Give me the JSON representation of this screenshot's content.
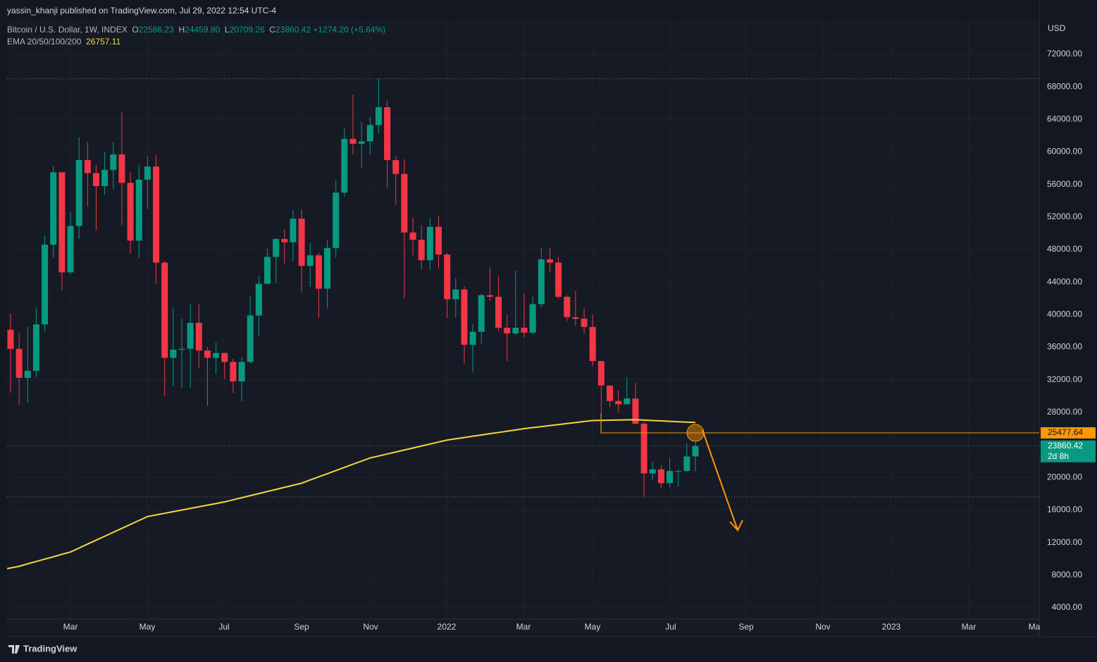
{
  "chart_data": {
    "type": "candlestick",
    "published": "yassin_khanji published on TradingView.com, Jul 29, 2022 12:54 UTC-4",
    "title": "Bitcoin / U.S. Dollar, 1W, INDEX",
    "legend_keys": [
      "O",
      "H",
      "L",
      "C"
    ],
    "ohlc_labels": {
      "open": "22586.23",
      "high": "24459.80",
      "low": "20709.26",
      "close": "23860.42"
    },
    "change_label": "+1274.20 (+5.64%)",
    "currency": "USD",
    "countdown": "2d 8h",
    "brand": "TradingView",
    "up_color": "#089981",
    "down_color": "#f23645",
    "open": [
      38150,
      35800,
      32250,
      33100,
      38800,
      48600,
      57500,
      45200,
      50900,
      59000,
      57400,
      55800,
      57800,
      59700,
      56200,
      49100,
      56600,
      58200,
      46400,
      34700,
      35700,
      35800,
      39000,
      35600,
      34700,
      35300,
      34200,
      31800,
      34200,
      39900,
      43800,
      47100,
      49300,
      48900,
      51800,
      46000,
      47300,
      43200,
      48200,
      55000,
      61600,
      61000,
      61300,
      63300,
      65500,
      59000,
      57300,
      50100,
      49200,
      46700,
      50800,
      47400,
      41900,
      43100,
      36300,
      37900,
      42400,
      42200,
      38400,
      37700,
      38400,
      37800,
      41300,
      46800,
      46400,
      42200,
      39700,
      39500,
      38500,
      34300,
      31300,
      29400,
      29000,
      29700,
      26600,
      20500,
      21000,
      19300,
      20800,
      20800,
      22586.23
    ],
    "high": [
      40100,
      37800,
      38500,
      40900,
      49700,
      58300,
      57500,
      52600,
      61800,
      61200,
      58400,
      60000,
      61200,
      64900,
      57500,
      58400,
      59500,
      59600,
      46600,
      40800,
      39500,
      41300,
      41300,
      36000,
      36600,
      35300,
      34600,
      34800,
      42300,
      44800,
      48100,
      49400,
      50500,
      52900,
      52900,
      48800,
      47600,
      49200,
      56600,
      62900,
      67000,
      63700,
      64300,
      69000,
      66300,
      59500,
      59100,
      51900,
      51000,
      51900,
      52100,
      47600,
      44500,
      43500,
      38900,
      42600,
      45800,
      44700,
      40000,
      45400,
      42600,
      42300,
      48200,
      48200,
      47100,
      42400,
      42900,
      40800,
      40000,
      34300,
      31300,
      30700,
      32300,
      31600,
      26800,
      21900,
      21500,
      22400,
      21000,
      24200,
      24459.8
    ],
    "low": [
      30400,
      28900,
      29200,
      32300,
      37900,
      47000,
      43000,
      45000,
      49300,
      53300,
      50400,
      54700,
      55400,
      51000,
      47500,
      47000,
      53000,
      43800,
      30000,
      31200,
      31000,
      31000,
      33400,
      28800,
      32700,
      32100,
      30400,
      29300,
      34000,
      37300,
      43700,
      43900,
      46300,
      46600,
      42800,
      43400,
      39600,
      40800,
      47000,
      54500,
      59700,
      58000,
      59700,
      62300,
      55600,
      53500,
      42000,
      47300,
      45600,
      45500,
      45700,
      39600,
      39700,
      34000,
      32900,
      36400,
      41700,
      38000,
      34300,
      37500,
      37200,
      37600,
      40900,
      45200,
      42000,
      39200,
      38600,
      37700,
      33700,
      25400,
      28700,
      28000,
      29300,
      26600,
      17600,
      19700,
      18700,
      18800,
      18900,
      20700,
      20709.26
    ],
    "close": [
      35800,
      32250,
      33100,
      38800,
      48600,
      57500,
      45200,
      50900,
      59000,
      57400,
      55800,
      57800,
      59700,
      56200,
      49100,
      56600,
      58200,
      46400,
      34700,
      35700,
      35800,
      39000,
      35600,
      34700,
      35300,
      34200,
      31800,
      34200,
      39900,
      43800,
      47100,
      49300,
      48900,
      51800,
      46000,
      47300,
      43200,
      48200,
      55000,
      61600,
      61000,
      61300,
      63300,
      65500,
      59000,
      57300,
      50100,
      49200,
      46700,
      50800,
      47400,
      41900,
      43100,
      36300,
      37900,
      42400,
      42200,
      38400,
      37700,
      38400,
      37800,
      41300,
      46800,
      46400,
      42200,
      39700,
      39500,
      38500,
      34300,
      31300,
      29400,
      29000,
      29700,
      26600,
      20500,
      21000,
      19300,
      20800,
      20800,
      22586.23,
      23860.42
    ],
    "ema": {
      "name": "EMA 20/50/100/200",
      "color": "#f5d63d",
      "values": [
        8800,
        9090,
        9390,
        9680,
        9970,
        10260,
        10560,
        10850,
        11330,
        11820,
        12300,
        12780,
        13270,
        13750,
        14230,
        14720,
        15200,
        15400,
        15600,
        15800,
        16000,
        16200,
        16400,
        16600,
        16800,
        17000,
        17260,
        17510,
        17770,
        18020,
        18280,
        18530,
        18790,
        19040,
        19300,
        19690,
        20080,
        20460,
        20850,
        21240,
        21630,
        22010,
        22400,
        22640,
        22890,
        23130,
        23380,
        23620,
        23870,
        24110,
        24360,
        24600,
        24760,
        24910,
        25070,
        25220,
        25380,
        25530,
        25690,
        25840,
        26000,
        26130,
        26250,
        26380,
        26500,
        26630,
        26750,
        26880,
        27000,
        27020,
        27040,
        27060,
        27080,
        27100,
        27050,
        27000,
        26950,
        26900,
        26850,
        26800,
        26757.11
      ]
    },
    "level": {
      "value": 25477.64,
      "color": "#ff9800"
    },
    "ylim": [
      2614,
      76240
    ],
    "yticks": [
      {
        "value": 4000,
        "label": "4000.00"
      },
      {
        "value": 8000,
        "label": "8000.00"
      },
      {
        "value": 12000,
        "label": "12000.00"
      },
      {
        "value": 16000,
        "label": "16000.00"
      },
      {
        "value": 20000,
        "label": "20000.00"
      },
      {
        "value": 24000,
        "label": "24000.00"
      },
      {
        "value": 28000,
        "label": "28000.00"
      },
      {
        "value": 32000,
        "label": "32000.00"
      },
      {
        "value": 36000,
        "label": "36000.00"
      },
      {
        "value": 40000,
        "label": "40000.00"
      },
      {
        "value": 44000,
        "label": "44000.00"
      },
      {
        "value": 48000,
        "label": "48000.00"
      },
      {
        "value": 52000,
        "label": "52000.00"
      },
      {
        "value": 56000,
        "label": "56000.00"
      },
      {
        "value": 60000,
        "label": "60000.00"
      },
      {
        "value": 64000,
        "label": "64000.00"
      },
      {
        "value": 68000,
        "label": "68000.00"
      },
      {
        "value": 72000,
        "label": "72000.00"
      }
    ],
    "xtick_labels": [
      "Mar",
      "May",
      "Jul",
      "Sep",
      "Nov",
      "2022",
      "Mar",
      "May",
      "Jul",
      "Sep",
      "Nov",
      "2023",
      "Mar",
      "Ma"
    ],
    "grid": true
  }
}
